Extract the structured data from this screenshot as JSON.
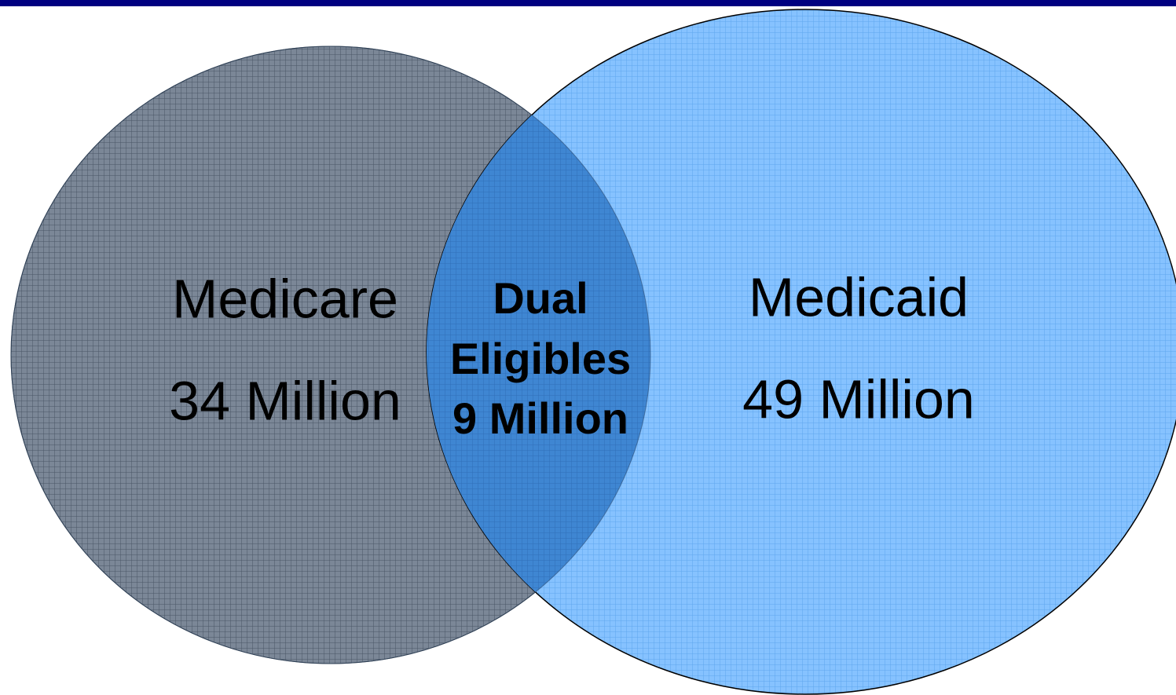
{
  "sets": [
    {
      "label": "Medicare",
      "count": "34 Million"
    },
    {
      "label": "Medicaid",
      "count": "49 Million"
    }
  ],
  "intersection": {
    "label_lines": [
      "Dual",
      "Eligibles"
    ],
    "count": "9 Million"
  }
}
